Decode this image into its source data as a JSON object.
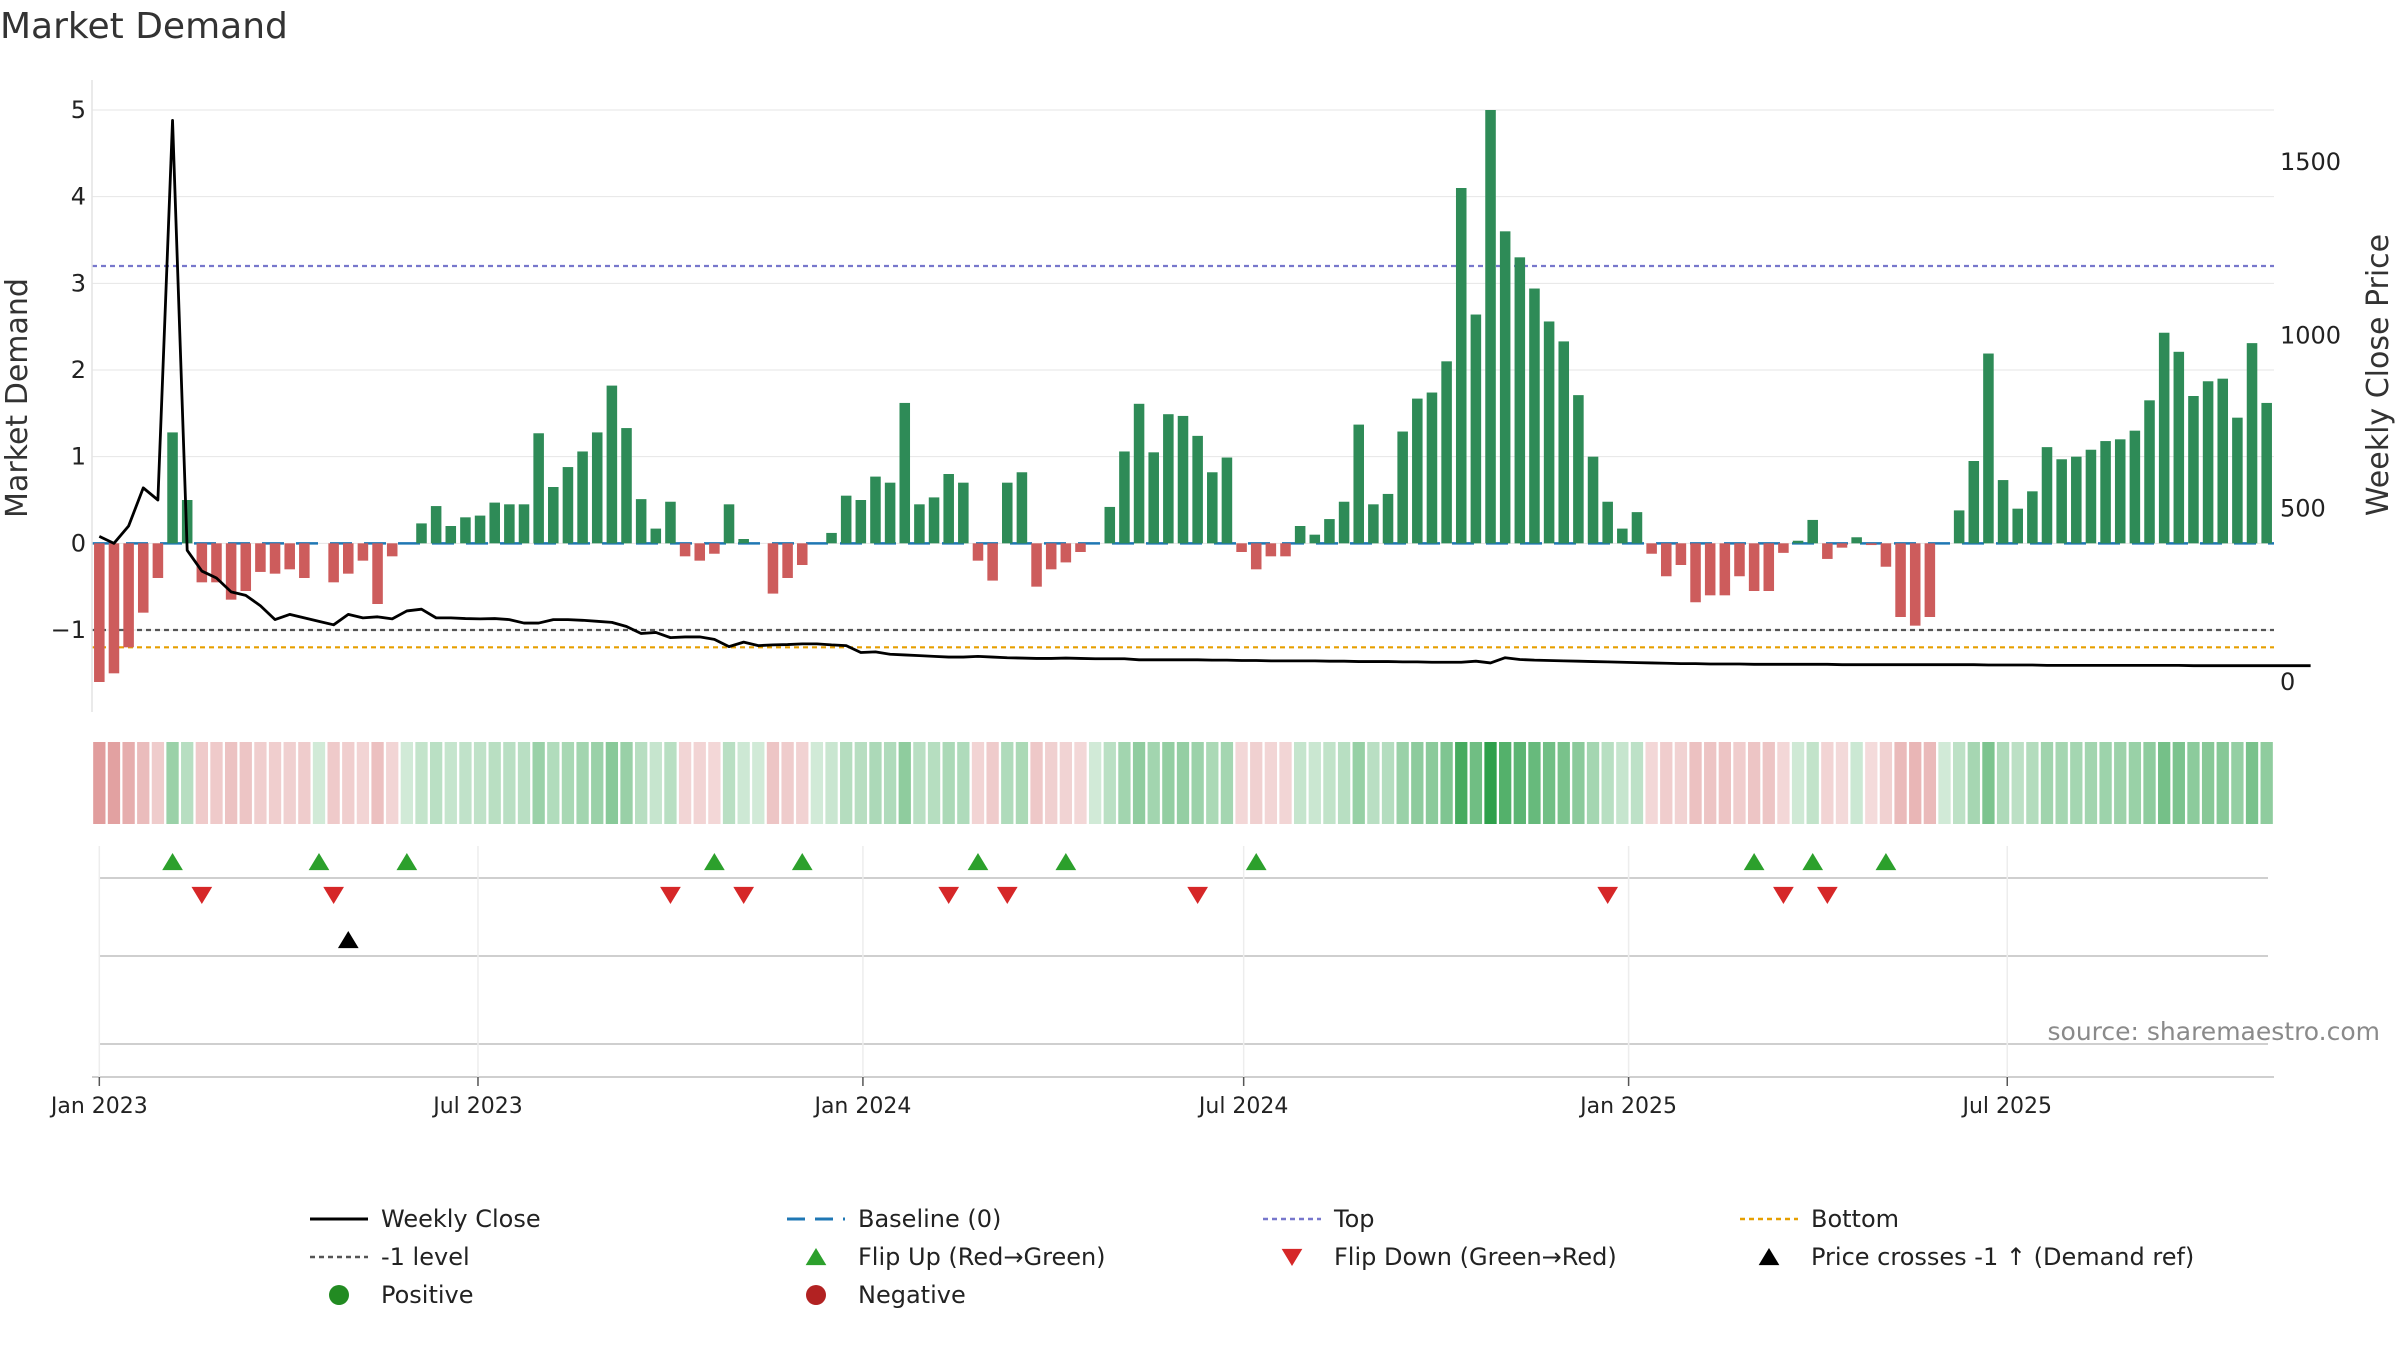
{
  "chart_data": {
    "type": "bar",
    "title": "Market Demand",
    "ylabel_left": "Market Demand",
    "ylabel_right": "Weekly Close Price",
    "source": "source: sharemaestro.com",
    "x_start": "2023-01-01",
    "x_step_days": 7,
    "left_axis": {
      "range": [
        -1.6,
        5.0
      ],
      "ticks": [
        -1,
        0,
        1,
        2,
        3,
        4,
        5
      ],
      "tick_labels": [
        "−1",
        "0",
        "1",
        "2",
        "3",
        "4",
        "5"
      ]
    },
    "right_axis": {
      "range": [
        0,
        1650
      ],
      "ticks": [
        0,
        500,
        1000,
        1500
      ],
      "tick_labels": [
        "0",
        "500",
        "1000",
        "1500"
      ]
    },
    "date_ticks": [
      {
        "date": "2023-01-01",
        "label": "Jan 2023"
      },
      {
        "date": "2023-07-01",
        "label": "Jul 2023"
      },
      {
        "date": "2024-01-01",
        "label": "Jan 2024"
      },
      {
        "date": "2024-07-01",
        "label": "Jul 2024"
      },
      {
        "date": "2025-01-01",
        "label": "Jan 2025"
      },
      {
        "date": "2025-07-01",
        "label": "Jul 2025"
      }
    ],
    "reference_lines": {
      "top": 3.2,
      "bottom": -1.2,
      "minus_one": -1,
      "baseline": 0
    },
    "demand": [
      -1.6,
      -1.5,
      -1.2,
      -0.8,
      -0.4,
      1.28,
      0.5,
      -0.45,
      -0.45,
      -0.65,
      -0.55,
      -0.33,
      -0.35,
      -0.3,
      -0.4,
      0.0,
      -0.45,
      -0.35,
      -0.2,
      -0.7,
      -0.15,
      0.0,
      0.23,
      0.43,
      0.2,
      0.3,
      0.32,
      0.47,
      0.45,
      0.45,
      1.27,
      0.65,
      0.88,
      1.06,
      1.28,
      1.82,
      1.33,
      0.51,
      0.17,
      0.48,
      -0.15,
      -0.2,
      -0.12,
      0.45,
      0.05,
      0.0,
      -0.58,
      -0.4,
      -0.25,
      0.0,
      0.12,
      0.55,
      0.5,
      0.77,
      0.7,
      1.62,
      0.45,
      0.53,
      0.8,
      0.7,
      -0.2,
      -0.43,
      0.7,
      0.82,
      -0.5,
      -0.3,
      -0.22,
      -0.1,
      0.0,
      0.42,
      1.06,
      1.61,
      1.05,
      1.49,
      1.47,
      1.24,
      0.82,
      0.99,
      -0.1,
      -0.3,
      -0.15,
      -0.15,
      0.2,
      0.1,
      0.28,
      0.48,
      1.37,
      0.45,
      0.57,
      1.29,
      1.67,
      1.74,
      2.1,
      4.1,
      2.64,
      5.0,
      3.6,
      3.3,
      2.94,
      2.56,
      2.33,
      1.71,
      1.0,
      0.48,
      0.17,
      0.36,
      -0.12,
      -0.38,
      -0.25,
      -0.68,
      -0.6,
      -0.6,
      -0.38,
      -0.55,
      -0.55,
      -0.11,
      0.03,
      0.27,
      -0.18,
      -0.05,
      0.07,
      -0.02,
      -0.27,
      -0.85,
      -0.95,
      -0.85,
      0.0,
      0.38,
      0.95,
      2.19,
      0.73,
      0.4,
      0.6,
      1.11,
      0.97,
      1.0,
      1.08,
      1.18,
      1.2,
      1.3,
      1.65,
      2.43,
      2.21,
      1.7,
      1.87,
      1.9,
      1.45,
      2.31,
      1.62
    ],
    "weekly_close": [
      420,
      400,
      450,
      560,
      525,
      1620,
      380,
      320,
      300,
      260,
      250,
      220,
      180,
      195,
      185,
      175,
      165,
      195,
      185,
      188,
      182,
      205,
      210,
      185,
      185,
      183,
      182,
      183,
      180,
      170,
      170,
      180,
      180,
      178,
      175,
      172,
      160,
      140,
      143,
      128,
      130,
      130,
      123,
      102,
      115,
      105,
      107,
      108,
      110,
      110,
      107,
      105,
      85,
      87,
      80,
      78,
      76,
      74,
      72,
      72,
      74,
      72,
      70,
      69,
      68,
      68,
      69,
      68,
      67,
      67,
      67,
      64,
      64,
      64,
      64,
      64,
      63,
      63,
      62,
      62,
      61,
      61,
      61,
      61,
      60,
      60,
      59,
      59,
      59,
      58,
      58,
      57,
      57,
      57,
      60,
      55,
      70,
      65,
      63,
      62,
      61,
      60,
      59,
      58,
      57,
      56,
      55,
      54,
      53,
      53,
      52,
      52,
      52,
      51,
      51,
      51,
      51,
      51,
      51,
      50,
      50,
      50,
      50,
      50,
      50,
      50,
      50,
      50,
      50,
      49,
      49,
      49,
      49,
      48,
      48,
      48,
      48,
      48,
      48,
      48,
      48,
      48,
      48,
      47,
      47,
      47,
      47,
      47,
      47,
      47,
      47,
      47
    ],
    "flip_up_weeks": [
      5,
      15,
      21,
      42,
      48,
      60,
      66,
      79,
      113,
      117,
      122
    ],
    "flip_down_weeks": [
      7,
      16,
      39,
      44,
      58,
      62,
      75,
      103,
      115,
      118
    ],
    "price_cross_weeks": [
      17
    ],
    "legend": [
      {
        "label": "Weekly Close",
        "symbol": "line",
        "color": "#000000"
      },
      {
        "label": "Baseline (0)",
        "symbol": "dash",
        "color": "#1f77b4"
      },
      {
        "label": "Top",
        "symbol": "dot",
        "color": "#7777cc"
      },
      {
        "label": "Bottom",
        "symbol": "dot",
        "color": "#e69f00"
      },
      {
        "label": "-1 level",
        "symbol": "dot",
        "color": "#555555"
      },
      {
        "label": "Flip Up (Red→Green)",
        "symbol": "triangle-up",
        "color": "#2ca02c"
      },
      {
        "label": "Flip Down (Green→Red)",
        "symbol": "triangle-down",
        "color": "#d62728"
      },
      {
        "label": "Price crosses -1 ↑ (Demand ref)",
        "symbol": "triangle-up",
        "color": "#000000"
      },
      {
        "label": "Positive",
        "symbol": "circle",
        "color": "#228b22"
      },
      {
        "label": "Negative",
        "symbol": "circle",
        "color": "#b22222"
      }
    ],
    "colors": {
      "positive_bar": "#2e8b57",
      "negative_bar": "#cd5c5c",
      "price_line": "#000000",
      "flip_up": "#2ca02c",
      "flip_down": "#d62728",
      "price_cross": "#000000"
    }
  }
}
